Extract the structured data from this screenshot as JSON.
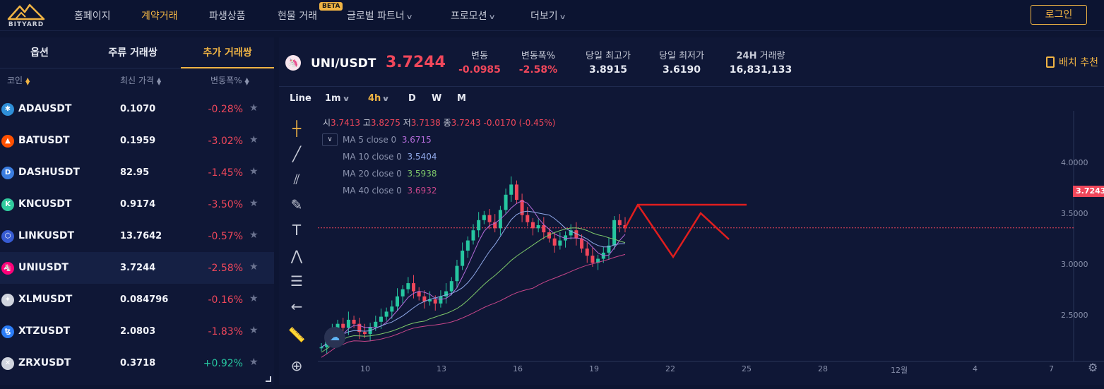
{
  "brand": {
    "name": "BITYARD"
  },
  "nav": {
    "items": [
      {
        "label": "홈페이지",
        "active": false
      },
      {
        "label": "계약거래",
        "active": true
      },
      {
        "label": "파생상품",
        "active": false
      },
      {
        "label": "현물 거래",
        "active": false
      },
      {
        "label": "글로벌 파트너",
        "active": false
      },
      {
        "label": "프로모션",
        "active": false
      },
      {
        "label": "더보기",
        "active": false
      }
    ],
    "beta_badge": "BETA",
    "login_label": "로그인"
  },
  "market": {
    "tabs": [
      "옵션",
      "주류 거래쌍",
      "추가 거래쌍"
    ],
    "active_tab": 2,
    "columns": {
      "coin": "코인",
      "price": "최신 가격",
      "change": "변동폭%"
    },
    "rows": [
      {
        "symbol": "ADAUSDT",
        "price": "0.1070",
        "change": "-0.28%",
        "icon": "ada-icon",
        "color": "#2f8fd8"
      },
      {
        "symbol": "BATUSDT",
        "price": "0.1959",
        "change": "-3.02%",
        "icon": "bat-icon",
        "color": "#ff5000"
      },
      {
        "symbol": "DASHUSDT",
        "price": "82.95",
        "change": "-1.45%",
        "icon": "dash-icon",
        "color": "#3b7de0"
      },
      {
        "symbol": "KNCUSDT",
        "price": "0.9174",
        "change": "-3.50%",
        "icon": "knc-icon",
        "color": "#31cb9e"
      },
      {
        "symbol": "LINKUSDT",
        "price": "13.7642",
        "change": "-0.57%",
        "icon": "link-icon",
        "color": "#375bd2"
      },
      {
        "symbol": "UNIUSDT",
        "price": "3.7244",
        "change": "-2.58%",
        "icon": "uni-icon",
        "color": "#ff007a"
      },
      {
        "symbol": "XLMUSDT",
        "price": "0.084796",
        "change": "-0.16%",
        "icon": "xlm-icon",
        "color": "#d0d4de"
      },
      {
        "symbol": "XTZUSDT",
        "price": "2.0803",
        "change": "-1.83%",
        "icon": "xtz-icon",
        "color": "#2c7df7"
      },
      {
        "symbol": "ZRXUSDT",
        "price": "0.3718",
        "change": "+0.92%",
        "icon": "zrx-icon",
        "color": "#d0d4de"
      }
    ],
    "selected_index": 5
  },
  "ticker": {
    "pair": "UNI/USDT",
    "last": "3.7244",
    "stats": [
      {
        "label": "변동",
        "value": "-0.0985"
      },
      {
        "label": "변동폭%",
        "value": "-2.58%"
      },
      {
        "label": "당일 최고가",
        "value": "3.8915"
      },
      {
        "label": "당일 최저가",
        "value": "3.6190"
      },
      {
        "label_prefix": "24H",
        "label": "거래량",
        "value": "16,831,133"
      }
    ],
    "batch_label": "배치 추천"
  },
  "chart_toolbar": {
    "timeframes": [
      "Line",
      "1m",
      "4h",
      "D",
      "W",
      "M"
    ],
    "active": "4h"
  },
  "chart_data": {
    "type": "candlestick",
    "ohlc_legend": {
      "open_label": "시",
      "open": "3.7413",
      "high_label": "고",
      "high": "3.8275",
      "low_label": "저",
      "low": "3.7138",
      "close_label": "종",
      "close": "3.7243",
      "change": "-0.0170 (-0.45%)"
    },
    "indicators": [
      {
        "name": "MA 5 close 0",
        "value": "3.6715",
        "color": "#b36bd9"
      },
      {
        "name": "MA 10 close 0",
        "value": "3.5404",
        "color": "#8fa8e8"
      },
      {
        "name": "MA 20 close 0",
        "value": "3.5938",
        "color": "#7ec86a"
      },
      {
        "name": "MA 40 close 0",
        "value": "3.6932",
        "color": "#c8468a"
      }
    ],
    "y_ticks": [
      "4.0000",
      "3.5000",
      "3.0000",
      "2.5000"
    ],
    "current_price_tag": "3.7243",
    "x_ticks": [
      "10",
      "13",
      "16",
      "19",
      "22",
      "25",
      "28",
      "12월",
      "4",
      "7"
    ]
  }
}
